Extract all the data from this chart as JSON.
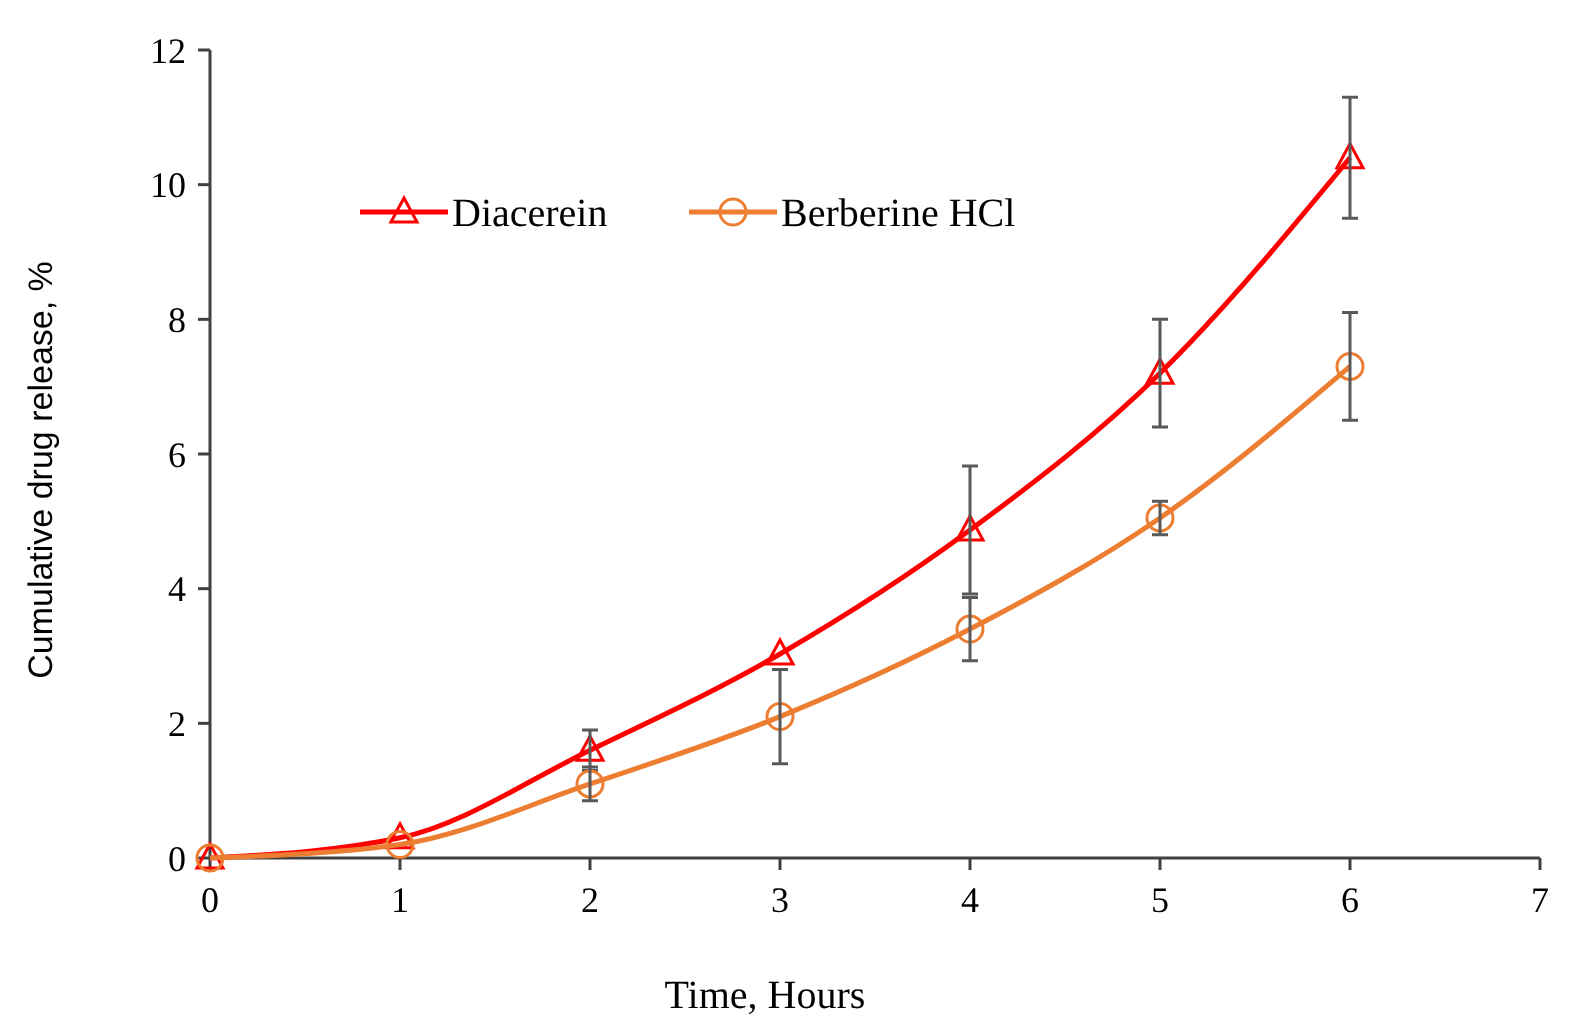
{
  "chart_data": {
    "type": "line",
    "xlabel": "Time, Hours",
    "ylabel": "Cumulative drug release, %",
    "x": [
      0,
      1,
      2,
      3,
      4,
      5,
      6
    ],
    "series": [
      {
        "name": "Diacerein",
        "color": "#ff0000",
        "marker": "triangle",
        "values": [
          0,
          0.3,
          1.6,
          3.03,
          4.87,
          7.2,
          10.4
        ],
        "errors": [
          null,
          null,
          0.3,
          null,
          0.95,
          0.8,
          0.9
        ]
      },
      {
        "name": "Berberine HCl",
        "color": "#ed7d31",
        "marker": "circle",
        "values": [
          0,
          0.2,
          1.1,
          2.1,
          3.4,
          5.05,
          7.3
        ],
        "errors": [
          null,
          null,
          0.25,
          0.7,
          0.47,
          0.25,
          0.8
        ]
      }
    ],
    "xlim": [
      0,
      7
    ],
    "xticks": [
      0,
      1,
      2,
      3,
      4,
      5,
      6,
      7
    ],
    "ylim": [
      0,
      12
    ],
    "yticks": [
      0,
      2,
      4,
      6,
      8,
      10,
      12
    ],
    "grid": false,
    "legend": "top left"
  }
}
